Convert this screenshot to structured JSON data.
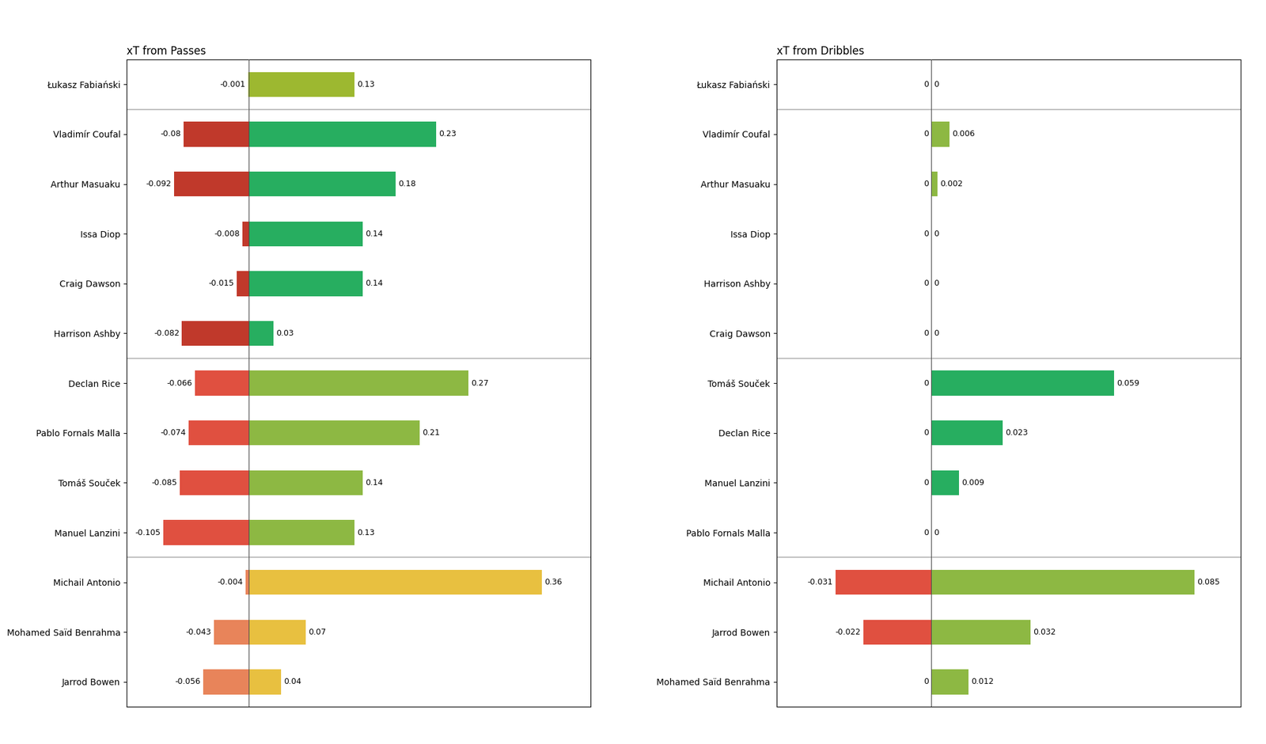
{
  "chart_data": [
    {
      "type": "bar",
      "title": "xT from Passes",
      "orientation": "horizontal",
      "stacked": true,
      "data_labels": true,
      "tick_labels": "y",
      "categories": [
        "Łukasz Fabiański",
        "Vladimír Coufal",
        "Arthur Masuaku",
        "Issa Diop",
        "Craig Dawson",
        "Harrison Ashby",
        "Declan Rice",
        "Pablo Fornals Malla",
        "Tomáš Souček",
        "Manuel Lanzini",
        "Michail Antonio",
        "Mohamed Saïd Benrahma",
        "Jarrod Bowen"
      ],
      "groups": [
        0,
        1,
        1,
        1,
        1,
        1,
        2,
        2,
        2,
        2,
        3,
        3,
        3
      ],
      "series": [
        {
          "values": [
            -0.001,
            -0.08,
            -0.092,
            -0.008,
            -0.015,
            -0.082,
            -0.066,
            -0.074,
            -0.085,
            -0.105,
            -0.004,
            -0.043,
            -0.056
          ],
          "colors": [
            "#b5c94e",
            "#c0392b",
            "#c0392b",
            "#c0392b",
            "#c0392b",
            "#c0392b",
            "#e05040",
            "#e05040",
            "#e05040",
            "#e05040",
            "#e8845a",
            "#e8845a",
            "#e8845a"
          ]
        },
        {
          "values": [
            0.13,
            0.23,
            0.18,
            0.14,
            0.14,
            0.03,
            0.27,
            0.21,
            0.14,
            0.13,
            0.36,
            0.07,
            0.04
          ],
          "colors": [
            "#9db830",
            "#27ae60",
            "#27ae60",
            "#27ae60",
            "#27ae60",
            "#27ae60",
            "#8db843",
            "#8db843",
            "#8db843",
            "#8db843",
            "#e8c040",
            "#e8c040",
            "#e8c040"
          ]
        }
      ],
      "xlim": [
        -0.15,
        0.42
      ]
    },
    {
      "type": "bar",
      "title": "xT from Dribbles",
      "orientation": "horizontal",
      "stacked": true,
      "data_labels": true,
      "tick_labels": "y",
      "categories": [
        "Łukasz Fabiański",
        "Vladimír Coufal",
        "Arthur Masuaku",
        "Issa Diop",
        "Harrison Ashby",
        "Craig Dawson",
        "Tomáš Souček",
        "Declan Rice",
        "Manuel Lanzini",
        "Pablo Fornals Malla",
        "Michail Antonio",
        "Jarrod Bowen",
        "Mohamed Saïd Benrahma"
      ],
      "groups": [
        0,
        1,
        1,
        1,
        1,
        1,
        2,
        2,
        2,
        2,
        3,
        3,
        3
      ],
      "series": [
        {
          "values": [
            0,
            0,
            0,
            0,
            0,
            0,
            0,
            0,
            0,
            0,
            -0.031,
            -0.022,
            0
          ],
          "colors": [
            "#b5c94e",
            "#c0392b",
            "#c0392b",
            "#c0392b",
            "#c0392b",
            "#c0392b",
            "#e05040",
            "#e05040",
            "#e05040",
            "#e05040",
            "#e05040",
            "#e05040",
            "#e05040"
          ]
        },
        {
          "values": [
            0,
            0.006,
            0.002,
            0,
            0,
            0,
            0.059,
            0.023,
            0.009,
            0,
            0.085,
            0.032,
            0.012
          ],
          "colors": [
            "#9db830",
            "#8db843",
            "#8db843",
            "#8db843",
            "#8db843",
            "#8db843",
            "#27ae60",
            "#27ae60",
            "#27ae60",
            "#27ae60",
            "#8db843",
            "#8db843",
            "#8db843"
          ]
        }
      ],
      "xlim": [
        -0.05,
        0.1
      ]
    }
  ]
}
